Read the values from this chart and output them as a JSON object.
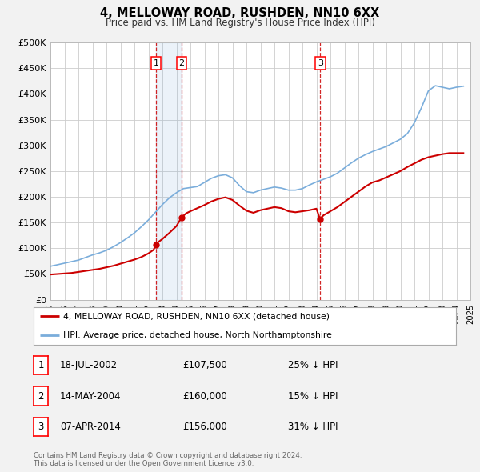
{
  "title": "4, MELLOWAY ROAD, RUSHDEN, NN10 6XX",
  "subtitle": "Price paid vs. HM Land Registry's House Price Index (HPI)",
  "background_color": "#f2f2f2",
  "plot_bg_color": "#ffffff",
  "grid_color": "#cccccc",
  "ylim": [
    0,
    500000
  ],
  "xlim_start": 1995,
  "xlim_end": 2025,
  "ytick_labels": [
    "£0",
    "£50K",
    "£100K",
    "£150K",
    "£200K",
    "£250K",
    "£300K",
    "£350K",
    "£400K",
    "£450K",
    "£500K"
  ],
  "ytick_values": [
    0,
    50000,
    100000,
    150000,
    200000,
    250000,
    300000,
    350000,
    400000,
    450000,
    500000
  ],
  "red_line_color": "#cc0000",
  "blue_line_color": "#7aaddb",
  "purchases": [
    {
      "label": "1",
      "date_num": 2002.54,
      "price": 107500,
      "hpi_pct": "25% ↓ HPI",
      "date_str": "18-JUL-2002"
    },
    {
      "label": "2",
      "date_num": 2004.37,
      "price": 160000,
      "hpi_pct": "15% ↓ HPI",
      "date_str": "14-MAY-2004"
    },
    {
      "label": "3",
      "date_num": 2014.27,
      "price": 156000,
      "hpi_pct": "31% ↓ HPI",
      "date_str": "07-APR-2014"
    }
  ],
  "legend_label_red": "4, MELLOWAY ROAD, RUSHDEN, NN10 6XX (detached house)",
  "legend_label_blue": "HPI: Average price, detached house, North Northamptonshire",
  "footer": "Contains HM Land Registry data © Crown copyright and database right 2024.\nThis data is licensed under the Open Government Licence v3.0.",
  "hpi_data": {
    "years": [
      1995.0,
      1995.5,
      1996.0,
      1996.5,
      1997.0,
      1997.5,
      1998.0,
      1998.5,
      1999.0,
      1999.5,
      2000.0,
      2000.5,
      2001.0,
      2001.5,
      2002.0,
      2002.5,
      2003.0,
      2003.5,
      2004.0,
      2004.5,
      2005.0,
      2005.5,
      2006.0,
      2006.5,
      2007.0,
      2007.5,
      2008.0,
      2008.5,
      2009.0,
      2009.5,
      2010.0,
      2010.5,
      2011.0,
      2011.5,
      2012.0,
      2012.5,
      2013.0,
      2013.5,
      2014.0,
      2014.5,
      2015.0,
      2015.5,
      2016.0,
      2016.5,
      2017.0,
      2017.5,
      2018.0,
      2018.5,
      2019.0,
      2019.5,
      2020.0,
      2020.5,
      2021.0,
      2021.5,
      2022.0,
      2022.5,
      2023.0,
      2023.5,
      2024.0,
      2024.5
    ],
    "values": [
      65000,
      68000,
      71000,
      74000,
      77000,
      82000,
      87000,
      91000,
      96000,
      103000,
      111000,
      120000,
      130000,
      142000,
      155000,
      170000,
      185000,
      198000,
      208000,
      216000,
      218000,
      220000,
      228000,
      236000,
      241000,
      243000,
      237000,
      222000,
      210000,
      208000,
      213000,
      216000,
      219000,
      217000,
      213000,
      213000,
      216000,
      223000,
      229000,
      234000,
      239000,
      246000,
      256000,
      266000,
      275000,
      282000,
      288000,
      293000,
      298000,
      305000,
      312000,
      323000,
      344000,
      373000,
      406000,
      416000,
      413000,
      410000,
      413000,
      415000
    ]
  },
  "price_paid_data": {
    "years": [
      1995.0,
      1995.5,
      1996.0,
      1996.5,
      1997.0,
      1997.5,
      1998.0,
      1998.5,
      1999.0,
      1999.5,
      2000.0,
      2000.5,
      2001.0,
      2001.5,
      2002.0,
      2002.37,
      2002.54,
      2002.7,
      2003.0,
      2003.5,
      2004.0,
      2004.37,
      2004.7,
      2005.0,
      2005.5,
      2006.0,
      2006.5,
      2007.0,
      2007.5,
      2008.0,
      2008.5,
      2009.0,
      2009.5,
      2010.0,
      2010.5,
      2011.0,
      2011.5,
      2012.0,
      2012.5,
      2013.0,
      2013.5,
      2014.0,
      2014.27,
      2014.5,
      2015.0,
      2015.5,
      2016.0,
      2016.5,
      2017.0,
      2017.5,
      2018.0,
      2018.5,
      2019.0,
      2019.5,
      2020.0,
      2020.5,
      2021.0,
      2021.5,
      2022.0,
      2022.5,
      2023.0,
      2023.5,
      2024.0,
      2024.5
    ],
    "values": [
      49000,
      50000,
      51000,
      52000,
      54000,
      56000,
      58000,
      60000,
      63000,
      66000,
      70000,
      74000,
      78000,
      83000,
      90000,
      97000,
      107500,
      112000,
      118000,
      130000,
      143000,
      160000,
      168000,
      172000,
      178000,
      184000,
      191000,
      196000,
      199000,
      194000,
      183000,
      173000,
      169000,
      174000,
      177000,
      180000,
      178000,
      172000,
      170000,
      172000,
      174000,
      177000,
      156000,
      164000,
      172000,
      180000,
      190000,
      200000,
      210000,
      220000,
      228000,
      232000,
      238000,
      244000,
      250000,
      258000,
      265000,
      272000,
      277000,
      280000,
      283000,
      285000,
      285000,
      285000
    ]
  }
}
